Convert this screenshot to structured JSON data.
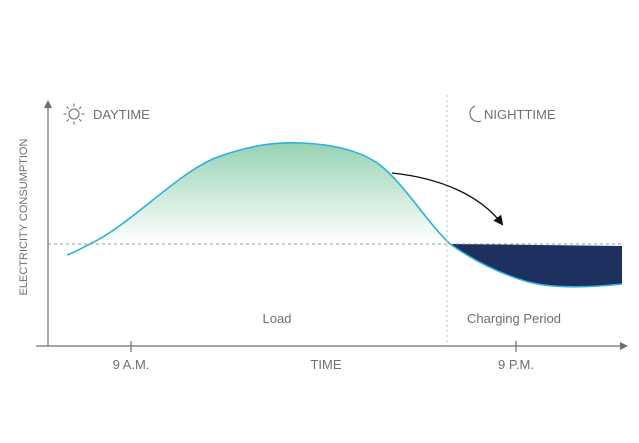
{
  "y_axis_label": "ELECTRICITY CONSUMPTION",
  "x_axis_label": "TIME",
  "x_ticks": [
    "9 A.M.",
    "9 P.M."
  ],
  "daytime": {
    "label": "DAYTIME",
    "icon": "sun-icon"
  },
  "nighttime": {
    "label": "NIGHTTIME",
    "icon": "moon-icon"
  },
  "regions": {
    "load": "Load",
    "charging": "Charging Period"
  },
  "colors": {
    "curve": "#2bb0df",
    "load_fill": "#8fcfae",
    "charging_fill": "#1e3060",
    "axis": "#6f6f6f",
    "reference_line": "#9a9a9a",
    "divider": "#bdbdbd",
    "text": "#6f6f6f"
  }
}
